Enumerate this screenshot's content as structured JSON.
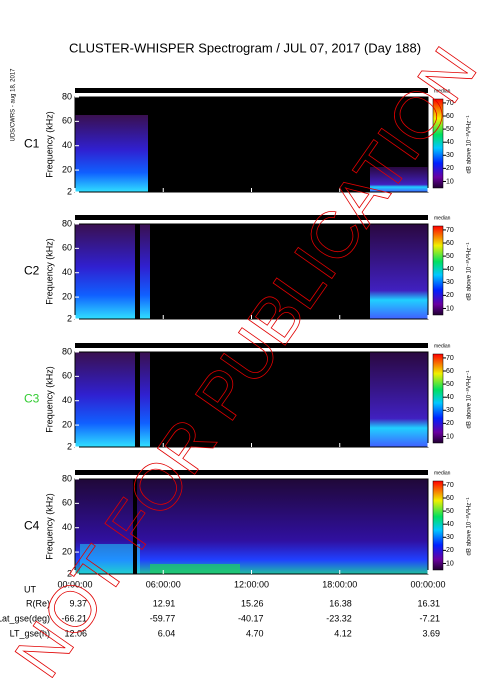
{
  "title": "CLUSTER-WHISPER Spectrogram / JUL 07, 2017 (Day 188)",
  "side_label": "UDS/CWRS - aug 18, 2017",
  "watermark": "NOT FOR PUBLICATION",
  "chart_data": [
    {
      "type": "spectrogram",
      "label": "C1",
      "label_color": "#000000",
      "ylabel": "Frequency (kHz)",
      "ylim": [
        2,
        80
      ],
      "yticks": [
        2,
        20,
        40,
        60,
        80
      ],
      "colorbar": {
        "title": "median",
        "label": "dB above 10⁻⁸V²Hz⁻¹",
        "lim": [
          5,
          73
        ],
        "ticks": [
          10,
          20,
          30,
          40,
          50,
          60,
          70
        ]
      }
    },
    {
      "type": "spectrogram",
      "label": "C2",
      "label_color": "#000000",
      "ylabel": "Frequency (kHz)",
      "ylim": [
        2,
        80
      ],
      "yticks": [
        2,
        20,
        40,
        60,
        80
      ],
      "colorbar": {
        "title": "median",
        "label": "dB above 10⁻⁸V²Hz⁻¹",
        "lim": [
          5,
          73
        ],
        "ticks": [
          10,
          20,
          30,
          40,
          50,
          60,
          70
        ]
      }
    },
    {
      "type": "spectrogram",
      "label": "C3",
      "label_color": "#33cc33",
      "ylabel": "Frequency (kHz)",
      "ylim": [
        2,
        80
      ],
      "yticks": [
        2,
        20,
        40,
        60,
        80
      ],
      "colorbar": {
        "title": "median",
        "label": "dB above 10⁻⁸V²Hz⁻¹",
        "lim": [
          5,
          73
        ],
        "ticks": [
          10,
          20,
          30,
          40,
          50,
          60,
          70
        ]
      }
    },
    {
      "type": "spectrogram",
      "label": "C4",
      "label_color": "#000000",
      "ylabel": "Frequency (kHz)",
      "ylim": [
        2,
        80
      ],
      "yticks": [
        2,
        20,
        40,
        60,
        80
      ],
      "xlabel": "UT",
      "xlim": [
        0,
        24
      ],
      "xticks": [
        {
          "value": 0,
          "label": "00:00:00"
        },
        {
          "value": 6,
          "label": "06:00:00"
        },
        {
          "value": 12,
          "label": "12:00:00"
        },
        {
          "value": 18,
          "label": "18:00:00"
        },
        {
          "value": 24,
          "label": "00:00:00"
        }
      ],
      "colorbar": {
        "title": "median",
        "label": "dB above 10⁻⁸V²Hz⁻¹",
        "lim": [
          5,
          73
        ],
        "ticks": [
          10,
          20,
          30,
          40,
          50,
          60,
          70
        ]
      }
    }
  ],
  "ephemeris": [
    {
      "name": "R(Re)",
      "values": [
        "9.37",
        "12.91",
        "15.26",
        "16.38",
        "16.31"
      ]
    },
    {
      "name": "Lat_gse(deg)",
      "values": [
        "-66.21",
        "-59.77",
        "-40.17",
        "-23.32",
        "-7.21"
      ]
    },
    {
      "name": "LT_gse(h)",
      "values": [
        "12.06",
        "6.04",
        "4.70",
        "4.12",
        "3.69"
      ]
    }
  ]
}
